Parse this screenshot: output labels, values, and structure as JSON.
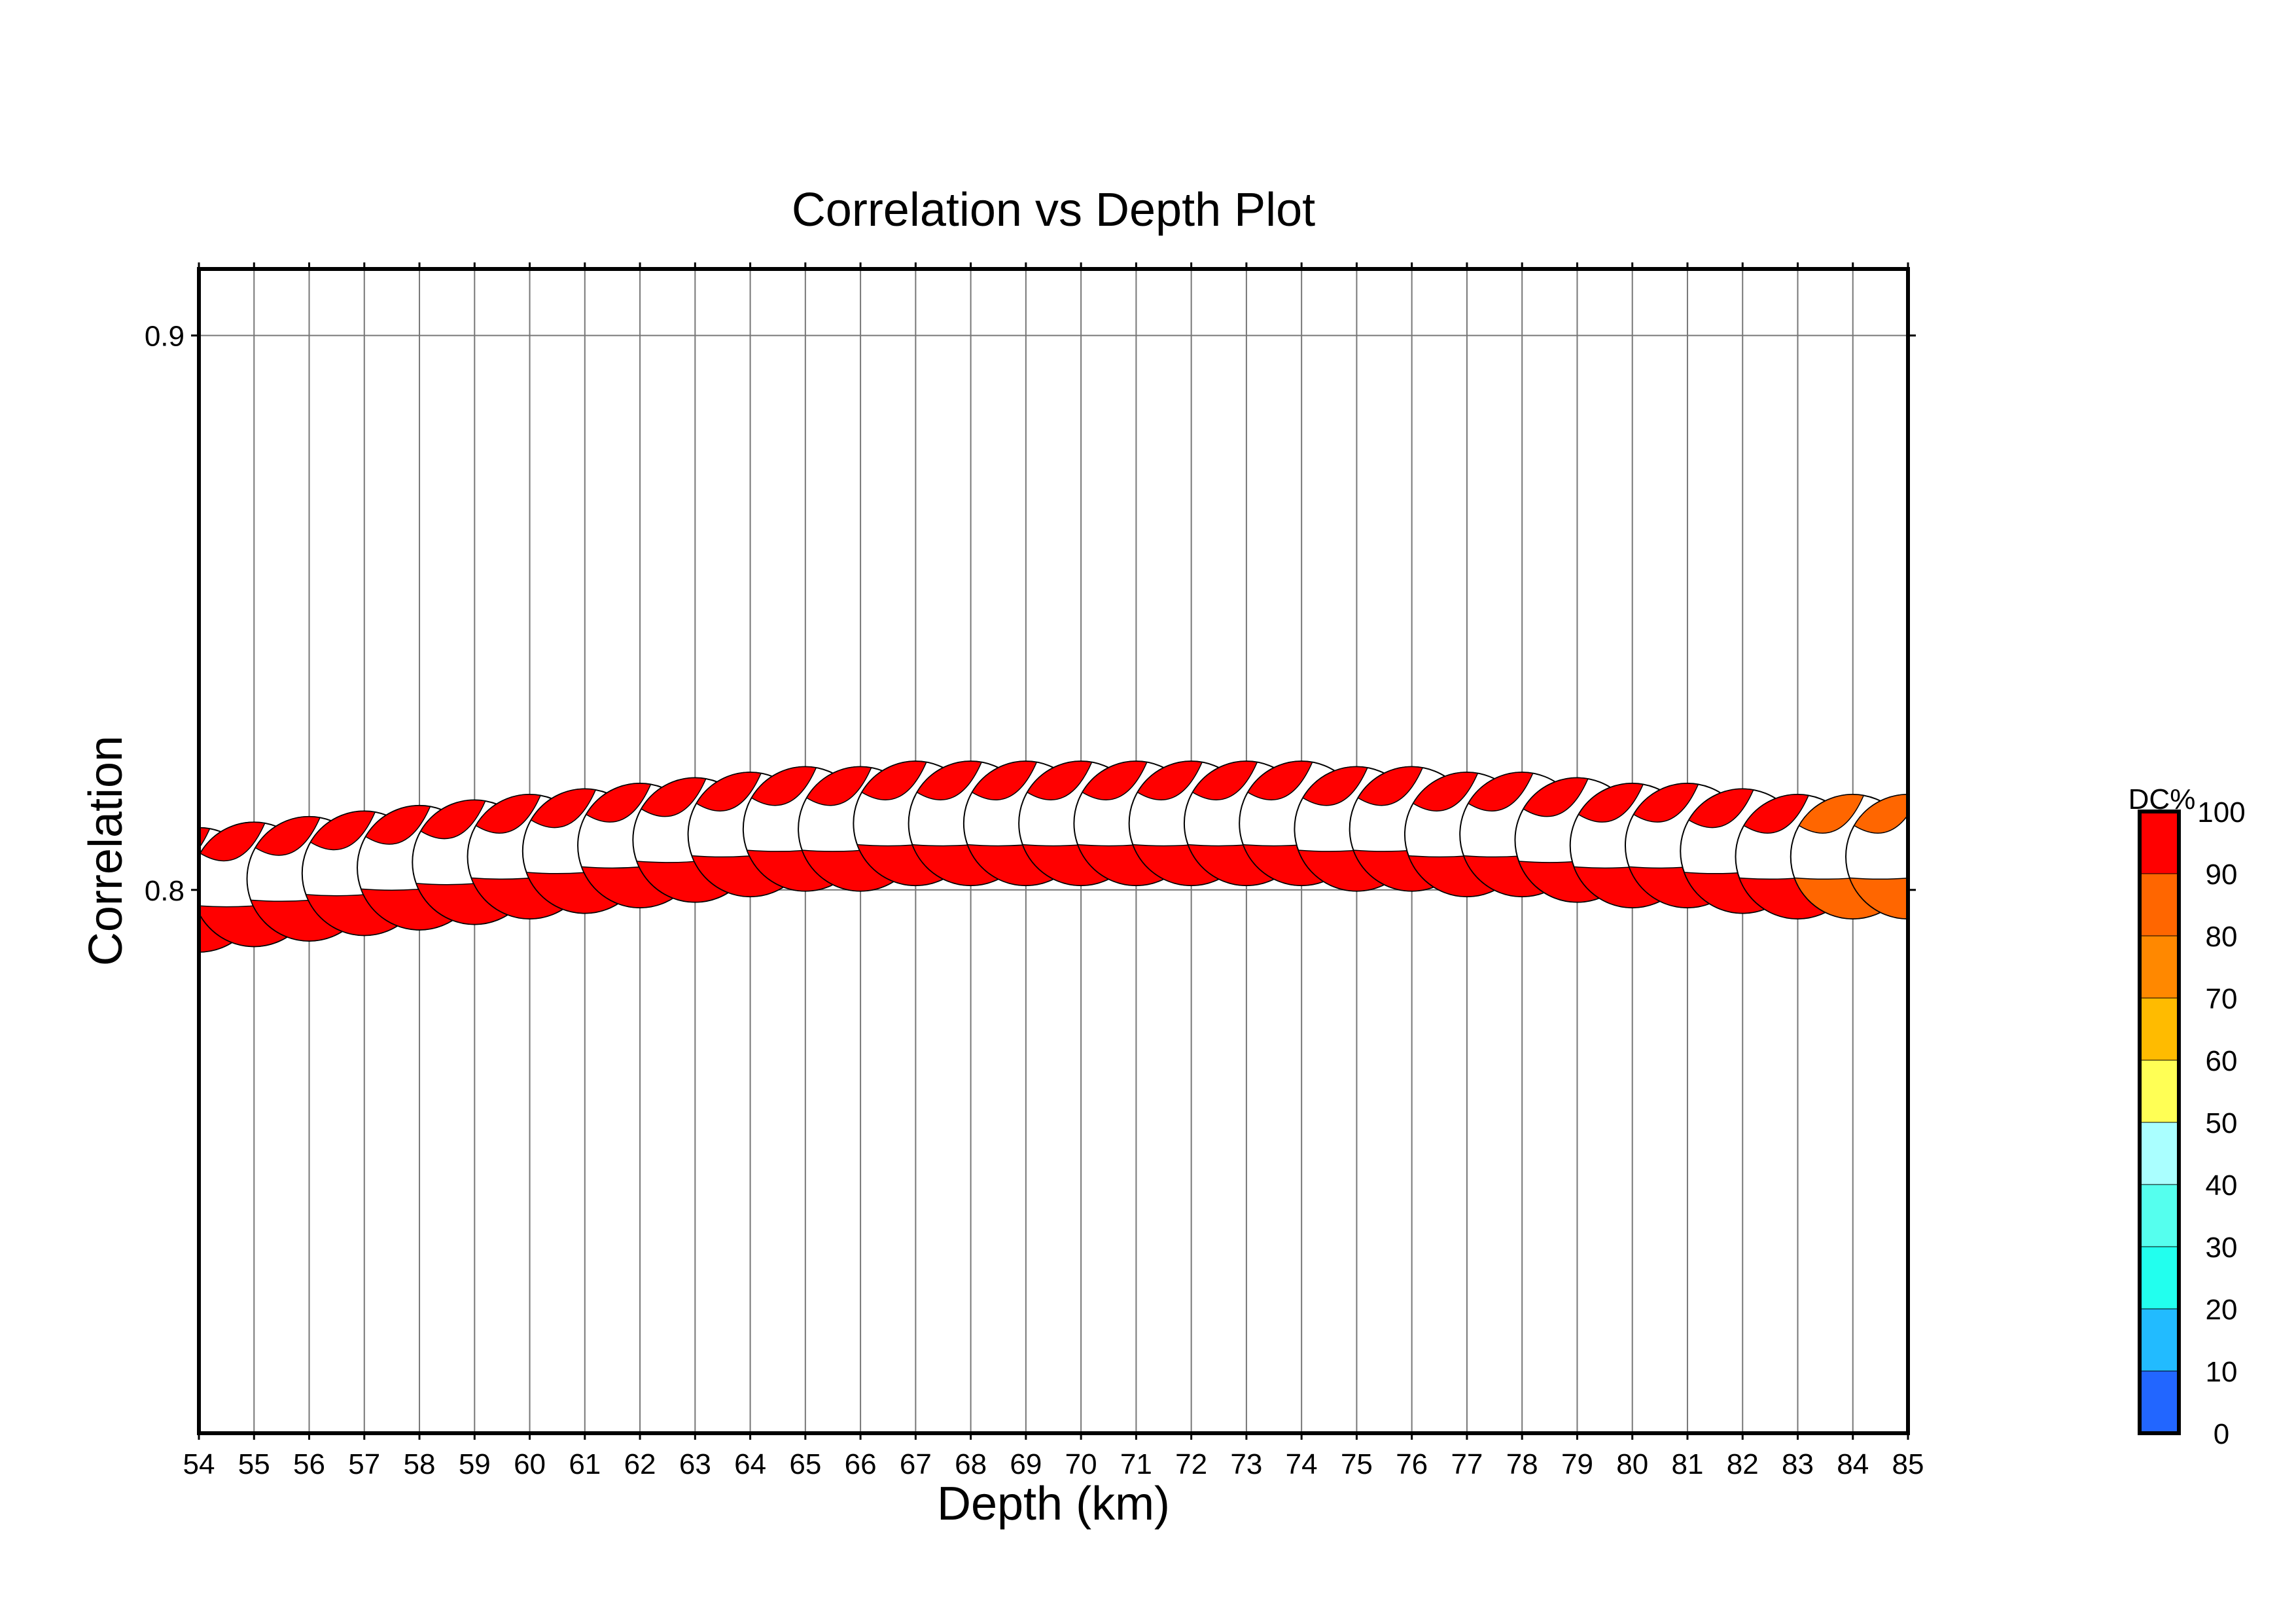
{
  "chart_data": {
    "type": "scatter",
    "marker": "beachball",
    "title": "Correlation vs Depth Plot",
    "xlabel": "Depth (km)",
    "ylabel": "Correlation",
    "xlim": [
      54,
      85
    ],
    "ylim": [
      0.702,
      0.912
    ],
    "grid": true,
    "xticks": [
      "54",
      "55",
      "56",
      "57",
      "58",
      "59",
      "60",
      "61",
      "62",
      "63",
      "64",
      "65",
      "66",
      "67",
      "68",
      "69",
      "70",
      "71",
      "72",
      "73",
      "74",
      "75",
      "76",
      "77",
      "78",
      "79",
      "80",
      "81",
      "82",
      "83",
      "84",
      "85"
    ],
    "yticks": [
      "0.8",
      "0.9"
    ],
    "x": [
      54,
      55,
      56,
      57,
      58,
      59,
      60,
      61,
      62,
      63,
      64,
      65,
      66,
      67,
      68,
      69,
      70,
      71,
      72,
      73,
      74,
      75,
      76,
      77,
      78,
      79,
      80,
      81,
      82,
      83,
      84,
      85
    ],
    "y": [
      0.8,
      0.801,
      0.802,
      0.803,
      0.804,
      0.805,
      0.806,
      0.807,
      0.808,
      0.809,
      0.81,
      0.811,
      0.811,
      0.812,
      0.812,
      0.812,
      0.812,
      0.812,
      0.812,
      0.812,
      0.812,
      0.811,
      0.811,
      0.81,
      0.81,
      0.809,
      0.808,
      0.808,
      0.807,
      0.806,
      0.806,
      0.806
    ],
    "dc_percent": [
      95,
      95,
      95,
      95,
      95,
      95,
      95,
      95,
      95,
      95,
      95,
      95,
      95,
      95,
      95,
      95,
      95,
      95,
      95,
      95,
      95,
      95,
      95,
      95,
      95,
      95,
      95,
      95,
      95,
      95,
      85,
      85
    ],
    "colorbar": {
      "label": "DC%",
      "ticks": [
        "0",
        "10",
        "20",
        "30",
        "40",
        "50",
        "60",
        "70",
        "80",
        "90",
        "100"
      ],
      "colors": [
        "#2266ff",
        "#22bbff",
        "#22ffee",
        "#55ffee",
        "#aaffff",
        "#ffff55",
        "#ffbb00",
        "#ff8800",
        "#ff6600",
        "#ff0000"
      ]
    },
    "colors": {
      "red": "#ff0000",
      "orange": "#ff6600"
    }
  }
}
